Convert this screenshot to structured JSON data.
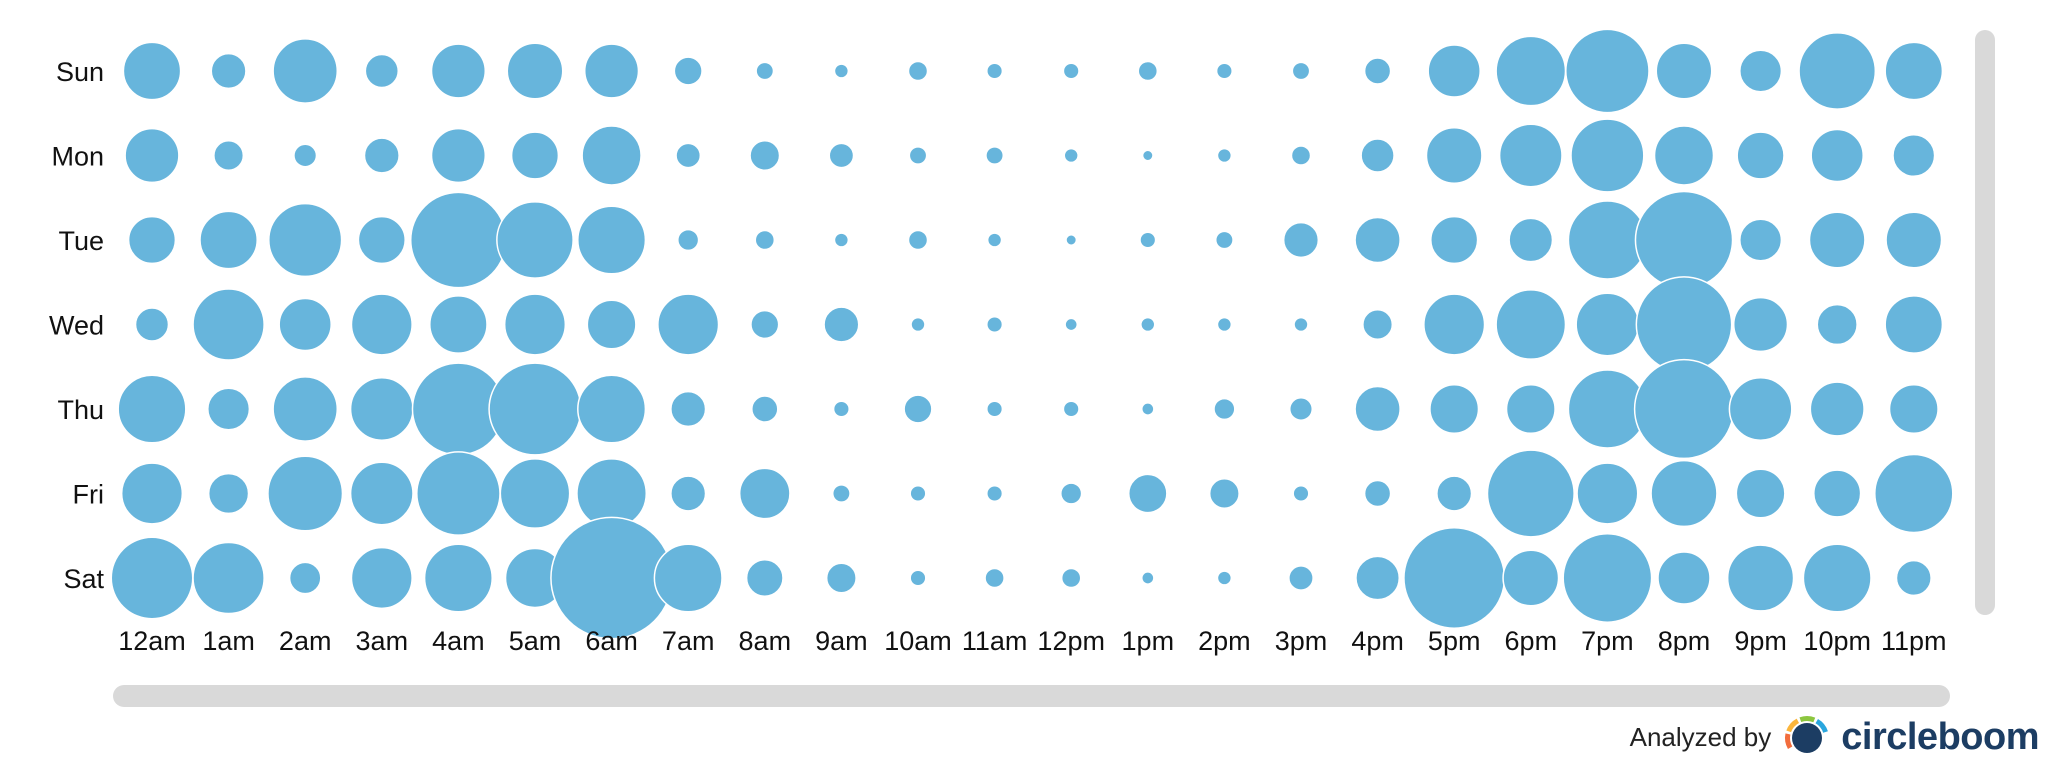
{
  "chart_data": {
    "type": "scatter",
    "title": "",
    "xlabel": "",
    "ylabel": "",
    "x_categories": [
      "12am",
      "1am",
      "2am",
      "3am",
      "4am",
      "5am",
      "6am",
      "7am",
      "8am",
      "9am",
      "10am",
      "11am",
      "12pm",
      "1pm",
      "2pm",
      "3pm",
      "4pm",
      "5pm",
      "6pm",
      "7pm",
      "8pm",
      "9pm",
      "10pm",
      "11pm"
    ],
    "y_categories": [
      "Sun",
      "Mon",
      "Tue",
      "Wed",
      "Thu",
      "Fri",
      "Sat"
    ],
    "size_scale_max": 60,
    "values": [
      [
        33,
        20,
        37,
        19,
        31,
        32,
        31,
        16,
        10,
        8,
        11,
        9,
        9,
        11,
        9,
        10,
        15,
        30,
        40,
        48,
        32,
        24,
        44,
        33
      ],
      [
        31,
        17,
        13,
        20,
        31,
        27,
        34,
        14,
        17,
        14,
        10,
        10,
        8,
        6,
        8,
        11,
        19,
        32,
        36,
        42,
        34,
        27,
        30,
        24
      ],
      [
        27,
        33,
        42,
        27,
        55,
        44,
        39,
        12,
        11,
        8,
        11,
        8,
        6,
        9,
        10,
        20,
        26,
        27,
        25,
        45,
        56,
        24,
        32,
        32
      ],
      [
        19,
        41,
        30,
        35,
        33,
        35,
        28,
        35,
        16,
        20,
        8,
        9,
        7,
        8,
        8,
        8,
        17,
        35,
        40,
        36,
        55,
        31,
        23,
        33
      ],
      [
        39,
        24,
        37,
        36,
        53,
        53,
        39,
        20,
        15,
        9,
        16,
        9,
        9,
        7,
        12,
        13,
        26,
        28,
        28,
        45,
        57,
        36,
        31,
        28
      ],
      [
        35,
        23,
        43,
        36,
        48,
        40,
        40,
        20,
        29,
        10,
        9,
        9,
        12,
        22,
        17,
        9,
        15,
        20,
        50,
        35,
        38,
        28,
        27,
        45
      ],
      [
        47,
        41,
        18,
        35,
        39,
        34,
        70,
        39,
        21,
        17,
        9,
        11,
        11,
        7,
        8,
        14,
        25,
        58,
        32,
        51,
        30,
        38,
        39,
        20
      ]
    ]
  },
  "branding": {
    "analyzed_by": "Analyzed by",
    "logo_text": "circleboom",
    "logo_colors": [
      "#f26d3d",
      "#fbb53c",
      "#8cc63f",
      "#2aa6de",
      "#1c3d63"
    ]
  },
  "colors": {
    "bubble_fill": "#67b5dc",
    "bubble_stroke": "#ffffff",
    "label_color": "#111111",
    "scrollbar": "#d9d9d9"
  }
}
